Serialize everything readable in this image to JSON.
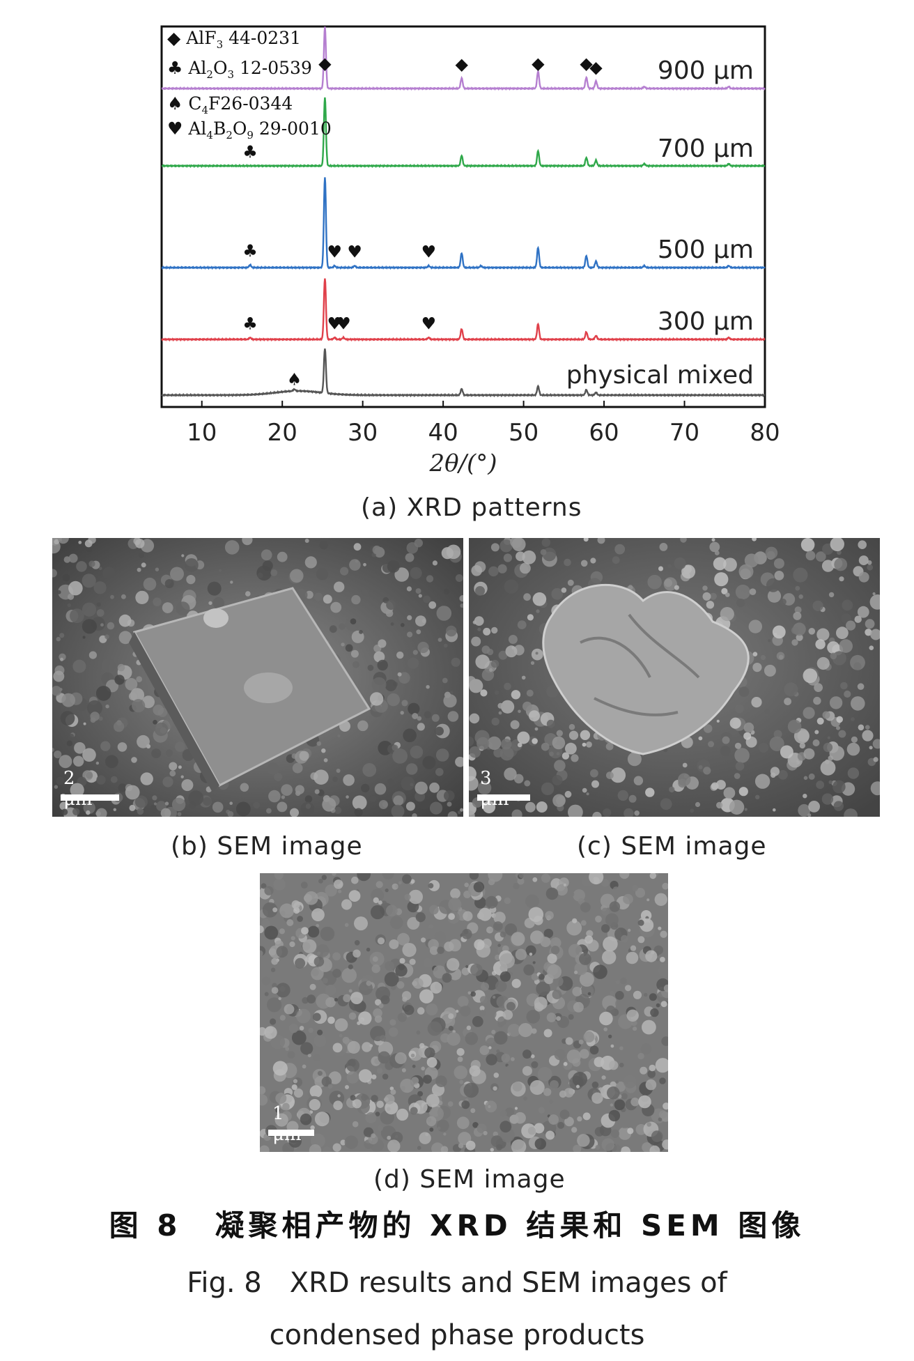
{
  "chart_data": {
    "type": "line",
    "xlabel": "2θ/(°)",
    "ylabel": "",
    "xlim": [
      5,
      80
    ],
    "xticks": [
      10,
      20,
      30,
      40,
      50,
      60,
      70,
      80
    ],
    "grid": false,
    "legend_position": "top-left",
    "legend": [
      {
        "marker": "diamond",
        "label": "AlF",
        "sub": "3",
        "tail": " 44-0231"
      },
      {
        "marker": "club",
        "label": "Al",
        "sub": "2",
        "mid": "O",
        "sub2": "3",
        "tail": " 12-0539"
      },
      {
        "marker": "spade",
        "label": "C",
        "sub": "4",
        "tail": "F26-0344"
      },
      {
        "marker": "heart",
        "label": "Al",
        "sub": "4",
        "mid": "B",
        "sub2": "2",
        "mid2": "O",
        "sub3": "9",
        "tail": " 29-0010"
      }
    ],
    "series": [
      {
        "name": "900 μm",
        "color": "#b57fd0",
        "peaks": [
          [
            25.3,
            1.0
          ],
          [
            42.3,
            0.17
          ],
          [
            51.8,
            0.28
          ],
          [
            57.8,
            0.18
          ],
          [
            59.0,
            0.12
          ],
          [
            65.0,
            0.03
          ],
          [
            75.5,
            0.03
          ]
        ],
        "markers": [
          {
            "x": 25.3,
            "symbol": "diamond"
          },
          {
            "x": 42.3,
            "symbol": "diamond"
          },
          {
            "x": 51.8,
            "symbol": "diamond"
          },
          {
            "x": 57.8,
            "symbol": "diamond"
          },
          {
            "x": 59.0,
            "symbol": "diamond"
          }
        ]
      },
      {
        "name": "700 μm",
        "color": "#2fa84a",
        "peaks": [
          [
            25.3,
            1.0
          ],
          [
            42.3,
            0.15
          ],
          [
            51.8,
            0.22
          ],
          [
            57.8,
            0.12
          ],
          [
            59.0,
            0.08
          ],
          [
            65.0,
            0.03
          ],
          [
            75.5,
            0.03
          ]
        ],
        "markers": [
          {
            "x": 16.0,
            "symbol": "club"
          }
        ]
      },
      {
        "name": "500 μm",
        "color": "#2f72c4",
        "peaks": [
          [
            16.0,
            0.03
          ],
          [
            25.3,
            1.0
          ],
          [
            26.5,
            0.02
          ],
          [
            29.0,
            0.02
          ],
          [
            38.2,
            0.02
          ],
          [
            42.3,
            0.16
          ],
          [
            44.7,
            0.02
          ],
          [
            51.8,
            0.22
          ],
          [
            57.8,
            0.13
          ],
          [
            59.0,
            0.07
          ],
          [
            65.0,
            0.02
          ],
          [
            75.5,
            0.02
          ]
        ],
        "markers": [
          {
            "x": 16.0,
            "symbol": "club"
          },
          {
            "x": 26.5,
            "symbol": "heart"
          },
          {
            "x": 29.0,
            "symbol": "heart"
          },
          {
            "x": 38.2,
            "symbol": "heart"
          }
        ]
      },
      {
        "name": "300 μm",
        "color": "#e0404a",
        "peaks": [
          [
            16.0,
            0.03
          ],
          [
            25.3,
            1.0
          ],
          [
            26.5,
            0.03
          ],
          [
            27.6,
            0.03
          ],
          [
            38.2,
            0.03
          ],
          [
            42.3,
            0.17
          ],
          [
            51.8,
            0.25
          ],
          [
            57.8,
            0.12
          ],
          [
            59.0,
            0.06
          ],
          [
            75.5,
            0.03
          ]
        ],
        "markers": [
          {
            "x": 16.0,
            "symbol": "club"
          },
          {
            "x": 26.5,
            "symbol": "heart"
          },
          {
            "x": 27.6,
            "symbol": "heart"
          },
          {
            "x": 38.2,
            "symbol": "heart"
          }
        ]
      },
      {
        "name": "physical mixed",
        "color": "#555555",
        "peaks": [
          [
            21.5,
            0.04
          ],
          [
            25.3,
            1.0
          ],
          [
            42.3,
            0.14
          ],
          [
            51.8,
            0.2
          ],
          [
            57.8,
            0.12
          ],
          [
            59.0,
            0.06
          ]
        ],
        "markers": [
          {
            "x": 21.5,
            "symbol": "spade"
          }
        ]
      }
    ]
  },
  "captions": {
    "a": "(a) XRD patterns",
    "b": "(b) SEM image",
    "c": "(c) SEM image",
    "d": "(d) SEM image"
  },
  "sem": {
    "b": {
      "scale": "2 μm"
    },
    "c": {
      "scale": "3 μm"
    },
    "d": {
      "scale": "1 μm"
    }
  },
  "figure": {
    "cn": "图 8　凝聚相产物的 XRD 结果和 SEM 图像",
    "en_label": "Fig. 8",
    "en_line1": "XRD results and SEM images of",
    "en_line2": "condensed phase products"
  }
}
